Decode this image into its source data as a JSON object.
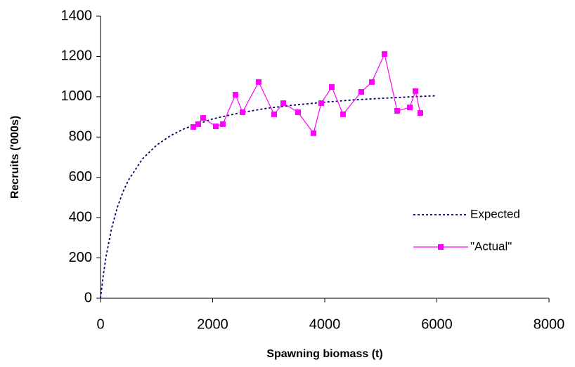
{
  "chart_data": {
    "type": "line",
    "xlabel": "Spawning biomass (t)",
    "ylabel": "Recruits ('000s)",
    "xlim": [
      0,
      8000
    ],
    "xticks": [
      0,
      2000,
      4000,
      6000,
      8000
    ],
    "ylim": [
      0,
      1400
    ],
    "yticks": [
      0,
      200,
      400,
      600,
      800,
      1000,
      1200,
      1400
    ],
    "grid": false,
    "legend": "right",
    "series": [
      {
        "name": "Expected",
        "color": "#000066",
        "style": "dotted",
        "marker": "none",
        "x": [
          0,
          50,
          100,
          200,
          300,
          400,
          500,
          750,
          1000,
          1250,
          1500,
          2000,
          2500,
          3000,
          3500,
          4000,
          4500,
          5000,
          5500,
          6000
        ],
        "values": [
          0,
          116,
          209,
          350,
          451,
          528,
          587,
          692,
          760,
          807,
          842,
          890,
          921,
          944,
          960,
          973,
          984,
          992,
          999,
          1005
        ]
      },
      {
        "name": "\"Actual\"",
        "color": "#ff00ff",
        "style": "solid",
        "marker": "square",
        "x": [
          1655,
          1743,
          1830,
          2056,
          2182,
          2408,
          2533,
          2821,
          3097,
          3260,
          3523,
          3799,
          3937,
          4125,
          4326,
          4652,
          4840,
          5066,
          5292,
          5517,
          5618,
          5705
        ],
        "values": [
          850,
          864,
          895,
          853,
          864,
          1010,
          923,
          1073,
          913,
          968,
          923,
          819,
          968,
          1048,
          913,
          1024,
          1073,
          1212,
          930,
          947,
          1028,
          919
        ]
      }
    ]
  }
}
